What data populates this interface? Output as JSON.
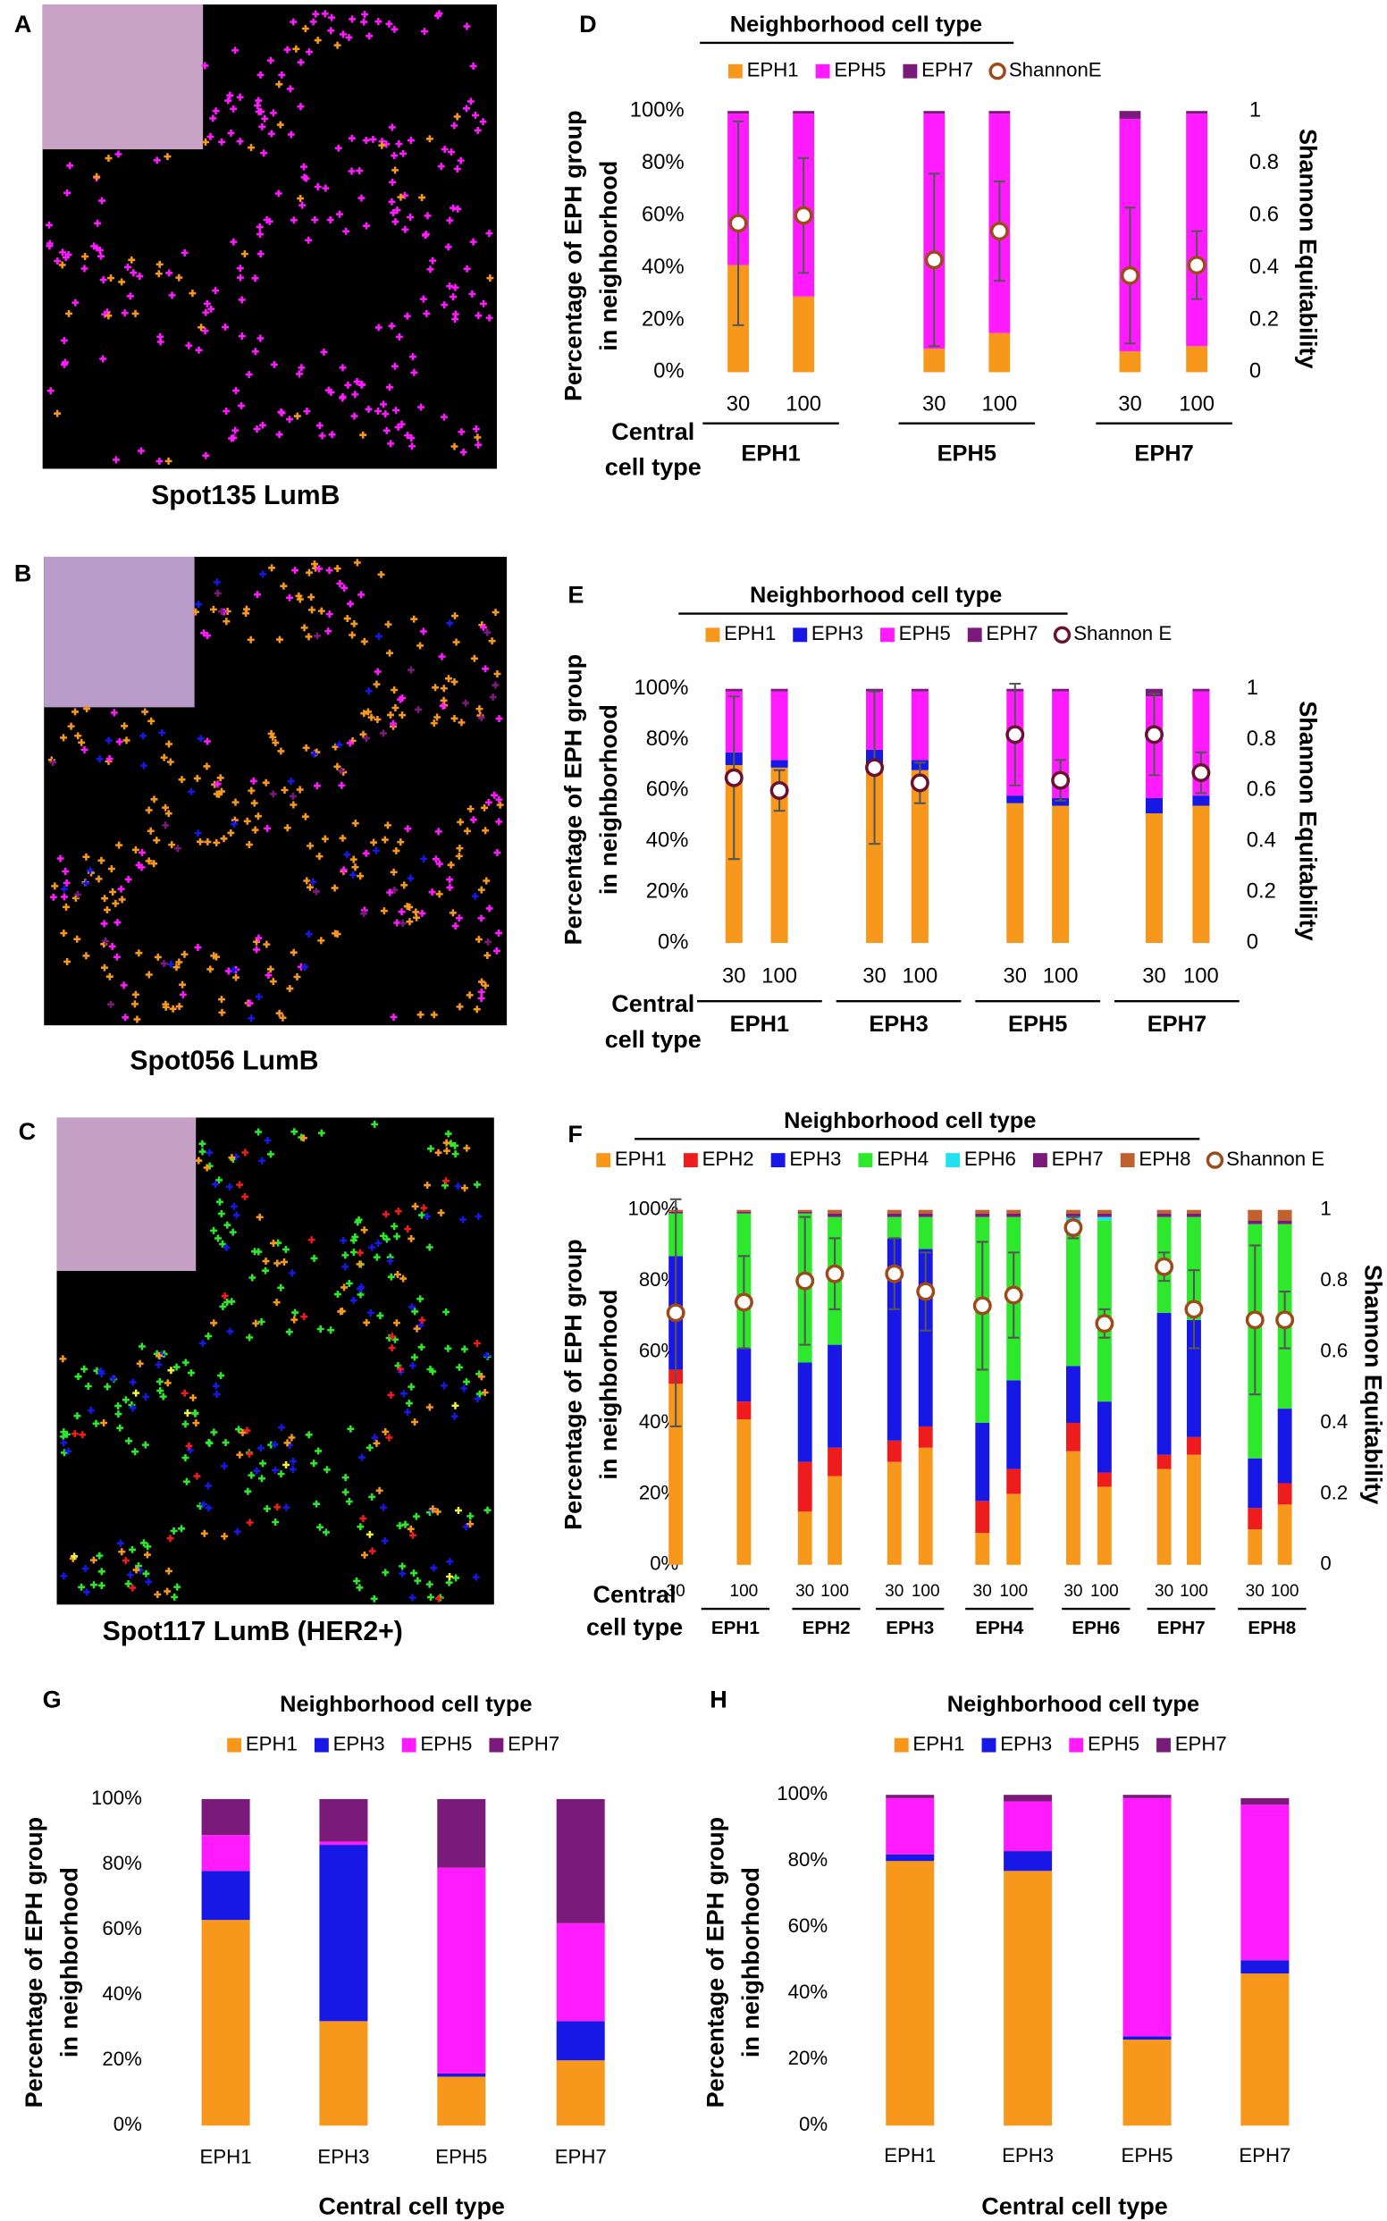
{
  "images": [
    {
      "label": "A",
      "caption": "Spot135 LumB"
    },
    {
      "label": "B",
      "caption": "Spot056 LumB"
    },
    {
      "label": "C",
      "caption": "Spot117 LumB (HER2+)"
    }
  ],
  "chart_data": [
    {
      "type": "stacked_bar",
      "label": "D",
      "title": "Neighborhood cell type",
      "categories": [
        "30",
        "100",
        "30",
        "100",
        "30",
        "100"
      ],
      "groups": [
        "EPH1",
        "EPH5",
        "EPH7"
      ],
      "x_label": [
        "Central",
        "cell type"
      ],
      "y_label": [
        "Percentage of EPH group",
        "in neighborhood"
      ],
      "y2_label": "Shannon Equitability",
      "ylim": [
        0,
        100
      ],
      "yticks": [
        {
          "value": 0,
          "label": "0%"
        },
        {
          "value": 20,
          "label": "20%"
        },
        {
          "value": 40,
          "label": "40%"
        },
        {
          "value": 60,
          "label": "60%"
        },
        {
          "value": 80,
          "label": "80%"
        },
        {
          "value": 100,
          "label": "100%"
        }
      ],
      "y2lim": [
        0,
        1
      ],
      "y2ticks": [
        0,
        0.2,
        0.4,
        0.6,
        0.8,
        1
      ],
      "grid": false,
      "series": [
        {
          "name": "EPH1",
          "color": "#f7981d",
          "values": [
            41,
            29,
            9,
            15,
            8,
            10
          ]
        },
        {
          "name": "EPH5",
          "color": "#ff1aff",
          "values": [
            58,
            70,
            90,
            84,
            89,
            89
          ]
        },
        {
          "name": "EPH7",
          "color": "#7a1a7a",
          "values": [
            1,
            1,
            1,
            1,
            3,
            1
          ]
        },
        {
          "name": "ShannonE",
          "color": "#9c4a1a",
          "axis": "y2",
          "marker": "circle",
          "values": [
            0.57,
            0.6,
            0.43,
            0.54,
            0.37,
            0.41
          ],
          "errors": [
            0.39,
            0.22,
            0.33,
            0.19,
            0.26,
            0.13
          ]
        }
      ]
    },
    {
      "type": "stacked_bar",
      "label": "E",
      "title": "Neighborhood cell type",
      "categories": [
        "30",
        "100",
        "30",
        "100",
        "30",
        "100",
        "30",
        "100"
      ],
      "groups": [
        "EPH1",
        "EPH3",
        "EPH5",
        "EPH7"
      ],
      "x_label": [
        "Central",
        "cell type"
      ],
      "y_label": [
        "Percentage of EPH group",
        "in neighborhood"
      ],
      "y2_label": "Shannon Equitability",
      "ylim": [
        0,
        100
      ],
      "yticks": [
        {
          "value": 0,
          "label": "0%"
        },
        {
          "value": 20,
          "label": "20%"
        },
        {
          "value": 40,
          "label": "40%"
        },
        {
          "value": 60,
          "label": "60%"
        },
        {
          "value": 80,
          "label": "80%"
        },
        {
          "value": 100,
          "label": "100%"
        }
      ],
      "y2lim": [
        0,
        1
      ],
      "y2ticks": [
        0,
        0.2,
        0.4,
        0.6,
        0.8,
        1
      ],
      "grid": false,
      "series": [
        {
          "name": "EPH1",
          "color": "#f7981d",
          "values": [
            70,
            69,
            70,
            68,
            55,
            54,
            51,
            54
          ]
        },
        {
          "name": "EPH3",
          "color": "#1717e6",
          "values": [
            5,
            3,
            6,
            4,
            3,
            3,
            6,
            4
          ]
        },
        {
          "name": "EPH5",
          "color": "#ff1aff",
          "values": [
            24,
            27,
            23,
            27,
            41,
            42,
            40,
            41
          ]
        },
        {
          "name": "EPH7",
          "color": "#7a1a7a",
          "values": [
            1,
            1,
            1,
            1,
            1,
            1,
            3,
            1
          ]
        },
        {
          "name": "Shannon E",
          "color": "#6a1030",
          "axis": "y2",
          "marker": "circle",
          "values": [
            0.65,
            0.6,
            0.69,
            0.63,
            0.82,
            0.64,
            0.82,
            0.67
          ],
          "errors": [
            0.32,
            0.08,
            0.3,
            0.08,
            0.2,
            0.08,
            0.16,
            0.08
          ]
        }
      ]
    },
    {
      "type": "stacked_bar",
      "label": "F",
      "title": "Neighborhood cell type",
      "categories": [
        "30",
        "100",
        "30",
        "100",
        "30",
        "100",
        "30",
        "100",
        "30",
        "100",
        "30",
        "100",
        "30",
        "100"
      ],
      "groups": [
        "EPH1",
        "EPH2",
        "EPH3",
        "EPH4",
        "EPH6",
        "EPH7",
        "EPH8"
      ],
      "x_label": [
        "Central",
        "cell type"
      ],
      "y_label": [
        "Percentage of EPH group",
        "in neighborhood"
      ],
      "y2_label": "Shannon Equitability",
      "ylim": [
        0,
        100
      ],
      "yticks": [
        {
          "value": 0,
          "label": "0%"
        },
        {
          "value": 20,
          "label": "20%"
        },
        {
          "value": 40,
          "label": "40%"
        },
        {
          "value": 60,
          "label": "60%"
        },
        {
          "value": 80,
          "label": "80%"
        },
        {
          "value": 100,
          "label": "100%"
        }
      ],
      "y2lim": [
        0,
        1
      ],
      "y2ticks": [
        0,
        0.2,
        0.4,
        0.6,
        0.8,
        1
      ],
      "grid": false,
      "series": [
        {
          "name": "EPH1",
          "color": "#f7981d",
          "values": [
            51,
            41,
            15,
            25,
            29,
            33,
            9,
            20,
            32,
            22,
            27,
            31,
            10,
            17
          ]
        },
        {
          "name": "EPH2",
          "color": "#ee1c1c",
          "values": [
            4,
            5,
            14,
            8,
            6,
            6,
            9,
            7,
            8,
            4,
            4,
            5,
            6,
            6
          ]
        },
        {
          "name": "EPH3",
          "color": "#1717e6",
          "values": [
            32,
            15,
            28,
            29,
            57,
            50,
            22,
            25,
            16,
            20,
            40,
            33,
            14,
            21
          ]
        },
        {
          "name": "EPH4",
          "color": "#2ee82e",
          "values": [
            12,
            38,
            42,
            36,
            6,
            9,
            58,
            46,
            41,
            51,
            27,
            29,
            66,
            52
          ]
        },
        {
          "name": "EPH6",
          "color": "#22e0f0",
          "values": [
            0,
            0,
            0,
            0,
            0,
            0,
            0,
            0,
            1,
            1,
            0,
            0,
            0,
            0
          ]
        },
        {
          "name": "EPH7",
          "color": "#7a1a7a",
          "values": [
            0.5,
            0.5,
            0.5,
            1,
            1,
            1,
            1,
            1,
            1,
            1,
            1,
            1,
            1,
            1
          ]
        },
        {
          "name": "EPH8",
          "color": "#c0622d",
          "values": [
            0.5,
            0.5,
            0.5,
            1,
            1,
            1,
            1,
            1,
            1,
            1,
            1,
            1,
            3,
            3
          ]
        },
        {
          "name": "Shannon E",
          "color": "#9c4a1a",
          "axis": "y2",
          "marker": "circle",
          "values": [
            0.71,
            0.74,
            0.8,
            0.82,
            0.82,
            0.77,
            0.73,
            0.76,
            0.95,
            0.68,
            0.84,
            0.72,
            0.69,
            0.69
          ],
          "errors": [
            0.32,
            0.13,
            0.18,
            0.1,
            0.1,
            0.11,
            0.18,
            0.12,
            0.03,
            0.04,
            0.04,
            0.11,
            0.21,
            0.08
          ]
        }
      ]
    },
    {
      "type": "stacked_bar",
      "label": "G",
      "title": "Neighborhood cell type",
      "categories": [
        "EPH1",
        "EPH3",
        "EPH5",
        "EPH7"
      ],
      "x_label": [
        "Central cell type"
      ],
      "y_label": [
        "Percentage of EPH group",
        "in neighborhood"
      ],
      "ylim": [
        0,
        100
      ],
      "yticks": [
        {
          "value": 0,
          "label": "0%"
        },
        {
          "value": 20,
          "label": "20%"
        },
        {
          "value": 40,
          "label": "40%"
        },
        {
          "value": 60,
          "label": "60%"
        },
        {
          "value": 80,
          "label": "80%"
        },
        {
          "value": 100,
          "label": "100%"
        }
      ],
      "grid": false,
      "series": [
        {
          "name": "EPH1",
          "color": "#f7981d",
          "values": [
            63,
            32,
            15,
            20
          ]
        },
        {
          "name": "EPH3",
          "color": "#1717e6",
          "values": [
            15,
            54,
            1,
            12
          ]
        },
        {
          "name": "EPH5",
          "color": "#ff1aff",
          "values": [
            11,
            1,
            63,
            30
          ]
        },
        {
          "name": "EPH7",
          "color": "#7a1a7a",
          "values": [
            11,
            13,
            21,
            38
          ]
        }
      ]
    },
    {
      "type": "stacked_bar",
      "label": "H",
      "title": "Neighborhood cell type",
      "categories": [
        "EPH1",
        "EPH3",
        "EPH5",
        "EPH7"
      ],
      "x_label": [
        "Central cell type"
      ],
      "y_label": [
        "Percentage of EPH group",
        "in neighborhood"
      ],
      "ylim": [
        0,
        100
      ],
      "yticks": [
        {
          "value": 0,
          "label": "0%"
        },
        {
          "value": 20,
          "label": "20%"
        },
        {
          "value": 40,
          "label": "40%"
        },
        {
          "value": 60,
          "label": "60%"
        },
        {
          "value": 80,
          "label": "80%"
        },
        {
          "value": 100,
          "label": "100%"
        }
      ],
      "grid": false,
      "series": [
        {
          "name": "EPH1",
          "color": "#f7981d",
          "values": [
            80,
            77,
            26,
            46
          ]
        },
        {
          "name": "EPH3",
          "color": "#1717e6",
          "values": [
            2,
            6,
            1,
            4
          ]
        },
        {
          "name": "EPH5",
          "color": "#ff1aff",
          "values": [
            17,
            15,
            72,
            47
          ]
        },
        {
          "name": "EPH7",
          "color": "#7a1a7a",
          "values": [
            1,
            2,
            1,
            2
          ]
        }
      ]
    }
  ]
}
